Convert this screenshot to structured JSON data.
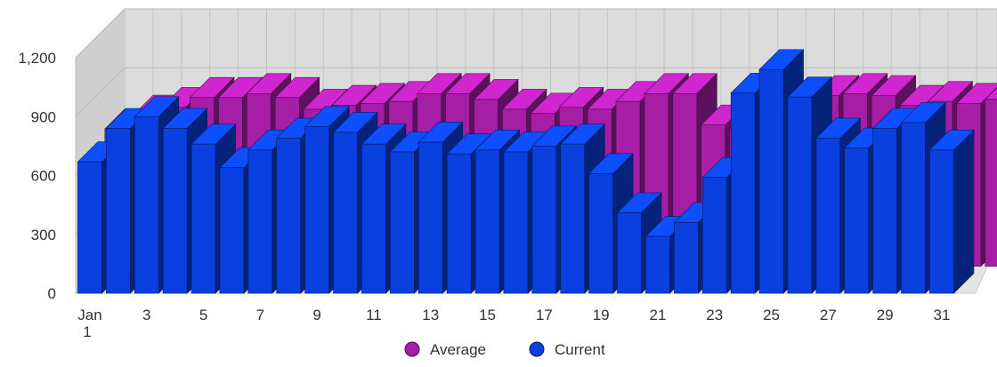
{
  "chart_data": {
    "type": "bar",
    "title": "",
    "xlabel": "",
    "ylabel": "",
    "ylim": [
      0,
      1200
    ],
    "yticks": [
      "0",
      "300",
      "600",
      "900",
      "1,200"
    ],
    "grid": true,
    "legend_position": "bottom",
    "three_d": true,
    "categories": [
      "1",
      "2",
      "3",
      "4",
      "5",
      "6",
      "7",
      "8",
      "9",
      "10",
      "11",
      "12",
      "13",
      "14",
      "15",
      "16",
      "17",
      "18",
      "19",
      "20",
      "21",
      "22",
      "23",
      "24",
      "25",
      "26",
      "27",
      "28",
      "29",
      "30",
      "31",
      "32"
    ],
    "x_tick_labels": [
      {
        "index": 0,
        "line1": "Jan",
        "line2": "1"
      },
      {
        "index": 2,
        "line1": "3",
        "line2": ""
      },
      {
        "index": 4,
        "line1": "5",
        "line2": ""
      },
      {
        "index": 6,
        "line1": "7",
        "line2": ""
      },
      {
        "index": 8,
        "line1": "9",
        "line2": ""
      },
      {
        "index": 10,
        "line1": "11",
        "line2": ""
      },
      {
        "index": 12,
        "line1": "13",
        "line2": ""
      },
      {
        "index": 14,
        "line1": "15",
        "line2": ""
      },
      {
        "index": 16,
        "line1": "17",
        "line2": ""
      },
      {
        "index": 18,
        "line1": "19",
        "line2": ""
      },
      {
        "index": 20,
        "line1": "21",
        "line2": ""
      },
      {
        "index": 22,
        "line1": "23",
        "line2": ""
      },
      {
        "index": 24,
        "line1": "25",
        "line2": ""
      },
      {
        "index": 26,
        "line1": "27",
        "line2": ""
      },
      {
        "index": 28,
        "line1": "29",
        "line2": ""
      },
      {
        "index": 30,
        "line1": "31",
        "line2": ""
      }
    ],
    "series": [
      {
        "name": "Average",
        "color": "#a61ea6",
        "values": [
          700,
          770,
          810,
          860,
          860,
          880,
          860,
          800,
          820,
          830,
          840,
          880,
          880,
          850,
          800,
          780,
          810,
          800,
          840,
          880,
          880,
          720,
          700,
          760,
          810,
          870,
          880,
          870,
          820,
          840,
          830,
          850
        ]
      },
      {
        "name": "Current",
        "color": "#0a3fe0",
        "values": [
          670,
          840,
          900,
          840,
          760,
          640,
          730,
          790,
          850,
          820,
          760,
          720,
          770,
          710,
          730,
          720,
          750,
          760,
          610,
          410,
          290,
          360,
          590,
          1020,
          1140,
          1000,
          790,
          740,
          840,
          870,
          730,
          null
        ]
      }
    ]
  }
}
